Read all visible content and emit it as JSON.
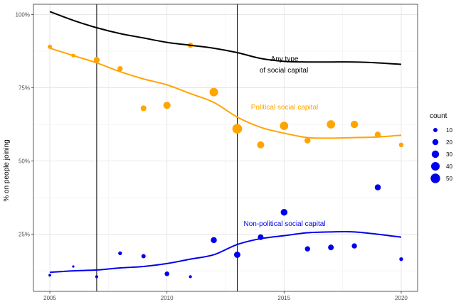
{
  "chart_data": {
    "type": "scatter",
    "ylabel": "% on people joining",
    "xlim": [
      2004.3,
      2020.7
    ],
    "ylim": [
      0.055,
      1.035
    ],
    "x_ticks": [
      2005,
      2010,
      2015,
      2020
    ],
    "y_ticks": [
      0.25,
      0.5,
      0.75,
      1.0
    ],
    "y_tick_labels": [
      "25%",
      "50%",
      "75%",
      "100%"
    ],
    "vlines": [
      2007,
      2013
    ],
    "grid": true,
    "legend_position": "right",
    "colors": {
      "political": "#FFA500",
      "nonpolitical": "#0000EE",
      "any": "#000000"
    },
    "series": [
      {
        "name": "Political social capital",
        "color": "#FFA500",
        "points": [
          {
            "x": 2005,
            "y": 0.89,
            "count": 10
          },
          {
            "x": 2006,
            "y": 0.86,
            "count": 8
          },
          {
            "x": 2007,
            "y": 0.845,
            "count": 20
          },
          {
            "x": 2008,
            "y": 0.815,
            "count": 15
          },
          {
            "x": 2009,
            "y": 0.68,
            "count": 18
          },
          {
            "x": 2010,
            "y": 0.69,
            "count": 28
          },
          {
            "x": 2011,
            "y": 0.895,
            "count": 15
          },
          {
            "x": 2012,
            "y": 0.735,
            "count": 40
          },
          {
            "x": 2013,
            "y": 0.61,
            "count": 52
          },
          {
            "x": 2014,
            "y": 0.555,
            "count": 28
          },
          {
            "x": 2015,
            "y": 0.62,
            "count": 38
          },
          {
            "x": 2016,
            "y": 0.57,
            "count": 20
          },
          {
            "x": 2017,
            "y": 0.625,
            "count": 38
          },
          {
            "x": 2018,
            "y": 0.625,
            "count": 30
          },
          {
            "x": 2019,
            "y": 0.59,
            "count": 20
          },
          {
            "x": 2020,
            "y": 0.555,
            "count": 12
          }
        ],
        "smooth": [
          {
            "x": 2005,
            "y": 0.885
          },
          {
            "x": 2006,
            "y": 0.86
          },
          {
            "x": 2007,
            "y": 0.835
          },
          {
            "x": 2008,
            "y": 0.805
          },
          {
            "x": 2009,
            "y": 0.78
          },
          {
            "x": 2010,
            "y": 0.76
          },
          {
            "x": 2011,
            "y": 0.73
          },
          {
            "x": 2012,
            "y": 0.7
          },
          {
            "x": 2013,
            "y": 0.65
          },
          {
            "x": 2014,
            "y": 0.615
          },
          {
            "x": 2015,
            "y": 0.595
          },
          {
            "x": 2016,
            "y": 0.58
          },
          {
            "x": 2017,
            "y": 0.578
          },
          {
            "x": 2018,
            "y": 0.58
          },
          {
            "x": 2019,
            "y": 0.582
          },
          {
            "x": 2020,
            "y": 0.588
          }
        ]
      },
      {
        "name": "Non-political social capital",
        "color": "#0000EE",
        "points": [
          {
            "x": 2005,
            "y": 0.11,
            "count": 4
          },
          {
            "x": 2006,
            "y": 0.14,
            "count": 3
          },
          {
            "x": 2007,
            "y": 0.105,
            "count": 5
          },
          {
            "x": 2008,
            "y": 0.185,
            "count": 8
          },
          {
            "x": 2009,
            "y": 0.175,
            "count": 10
          },
          {
            "x": 2010,
            "y": 0.115,
            "count": 12
          },
          {
            "x": 2011,
            "y": 0.105,
            "count": 5
          },
          {
            "x": 2012,
            "y": 0.23,
            "count": 20
          },
          {
            "x": 2013,
            "y": 0.18,
            "count": 22
          },
          {
            "x": 2014,
            "y": 0.24,
            "count": 18
          },
          {
            "x": 2015,
            "y": 0.325,
            "count": 25
          },
          {
            "x": 2016,
            "y": 0.2,
            "count": 15
          },
          {
            "x": 2017,
            "y": 0.205,
            "count": 18
          },
          {
            "x": 2018,
            "y": 0.21,
            "count": 15
          },
          {
            "x": 2019,
            "y": 0.41,
            "count": 20
          },
          {
            "x": 2020,
            "y": 0.165,
            "count": 8
          }
        ],
        "smooth": [
          {
            "x": 2005,
            "y": 0.12
          },
          {
            "x": 2006,
            "y": 0.125
          },
          {
            "x": 2007,
            "y": 0.128
          },
          {
            "x": 2008,
            "y": 0.135
          },
          {
            "x": 2009,
            "y": 0.14
          },
          {
            "x": 2010,
            "y": 0.15
          },
          {
            "x": 2011,
            "y": 0.165
          },
          {
            "x": 2012,
            "y": 0.18
          },
          {
            "x": 2013,
            "y": 0.215
          },
          {
            "x": 2014,
            "y": 0.235
          },
          {
            "x": 2015,
            "y": 0.245
          },
          {
            "x": 2016,
            "y": 0.255
          },
          {
            "x": 2017,
            "y": 0.258
          },
          {
            "x": 2018,
            "y": 0.258
          },
          {
            "x": 2019,
            "y": 0.25
          },
          {
            "x": 2020,
            "y": 0.24
          }
        ]
      },
      {
        "name": "Any type of social capital",
        "color": "#000000",
        "smooth": [
          {
            "x": 2005,
            "y": 1.01
          },
          {
            "x": 2006,
            "y": 0.98
          },
          {
            "x": 2007,
            "y": 0.955
          },
          {
            "x": 2008,
            "y": 0.935
          },
          {
            "x": 2009,
            "y": 0.92
          },
          {
            "x": 2010,
            "y": 0.905
          },
          {
            "x": 2011,
            "y": 0.895
          },
          {
            "x": 2012,
            "y": 0.885
          },
          {
            "x": 2013,
            "y": 0.87
          },
          {
            "x": 2014,
            "y": 0.85
          },
          {
            "x": 2015,
            "y": 0.84
          },
          {
            "x": 2016,
            "y": 0.838
          },
          {
            "x": 2017,
            "y": 0.838
          },
          {
            "x": 2018,
            "y": 0.838
          },
          {
            "x": 2019,
            "y": 0.835
          },
          {
            "x": 2020,
            "y": 0.83
          }
        ]
      }
    ],
    "annotations": {
      "any_line1": "Any type",
      "any_line2": "of social capital",
      "political": "Political social capital",
      "nonpolitical": "Non-political social capital"
    },
    "legend": {
      "title": "count",
      "items": [
        {
          "label": "10",
          "value": 10
        },
        {
          "label": "20",
          "value": 20
        },
        {
          "label": "30",
          "value": 30
        },
        {
          "label": "40",
          "value": 40
        },
        {
          "label": "50",
          "value": 50
        }
      ],
      "color": "#0000EE"
    }
  }
}
